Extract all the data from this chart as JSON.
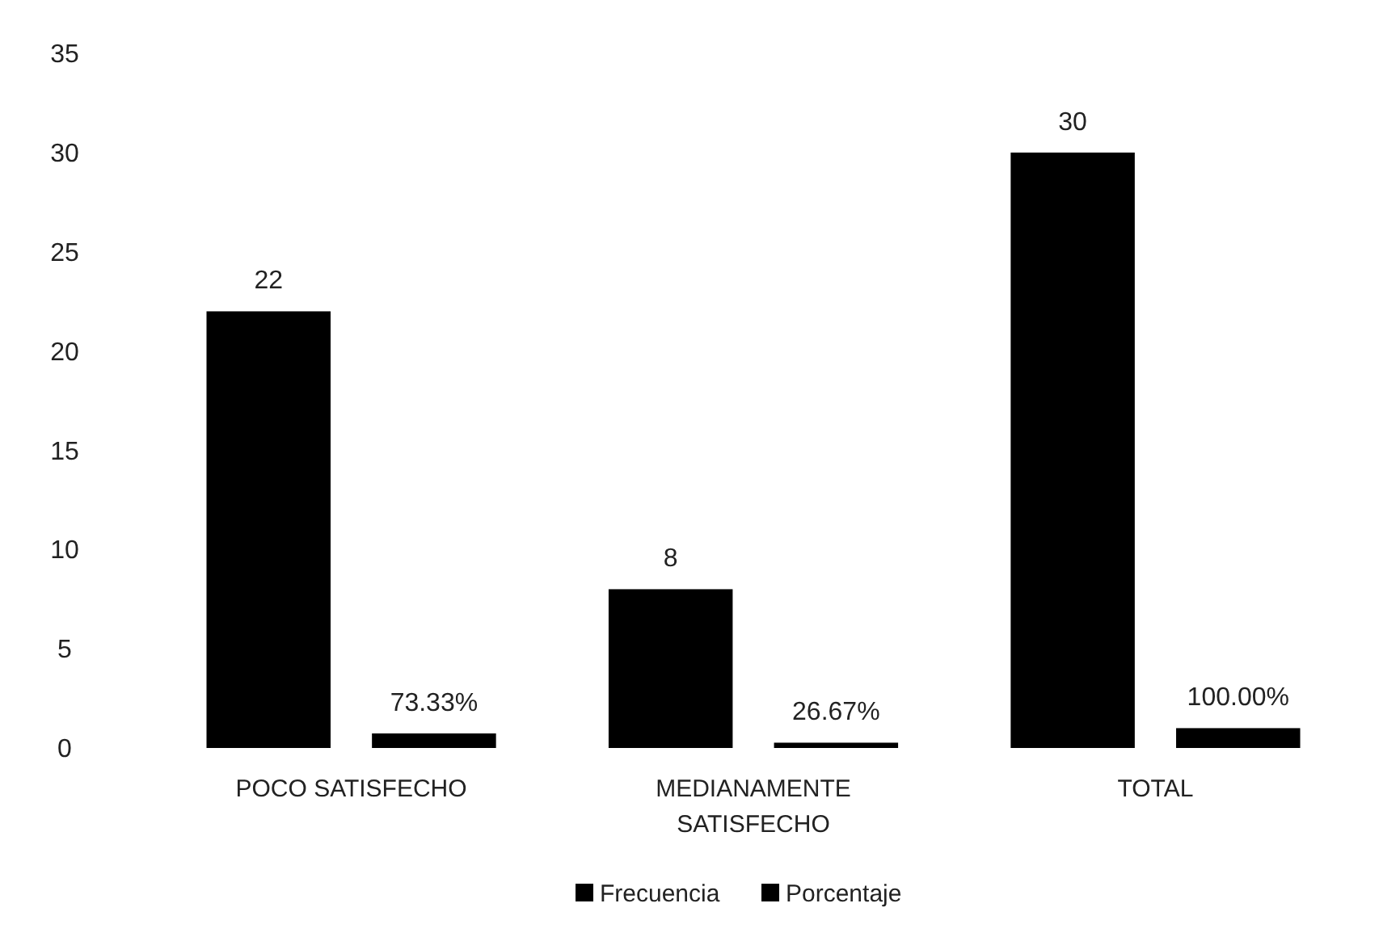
{
  "chart_data": {
    "type": "bar",
    "categories": [
      "POCO SATISFECHO",
      "MEDIANAMENTE SATISFECHO",
      "TOTAL"
    ],
    "series": [
      {
        "name": "Frecuencia",
        "color": "#000000",
        "values": [
          22,
          8,
          30
        ],
        "value_labels": [
          "22",
          "8",
          "30"
        ]
      },
      {
        "name": "Porcentaje",
        "color": "#000000",
        "values": [
          0.7333,
          0.2667,
          1.0
        ],
        "value_labels": [
          "73.33%",
          "26.67%",
          "100.00%"
        ]
      }
    ],
    "ylim": [
      0,
      35
    ],
    "yticks": [
      0,
      5,
      10,
      15,
      20,
      25,
      30,
      35
    ],
    "grid": false,
    "legend": "bottom"
  }
}
